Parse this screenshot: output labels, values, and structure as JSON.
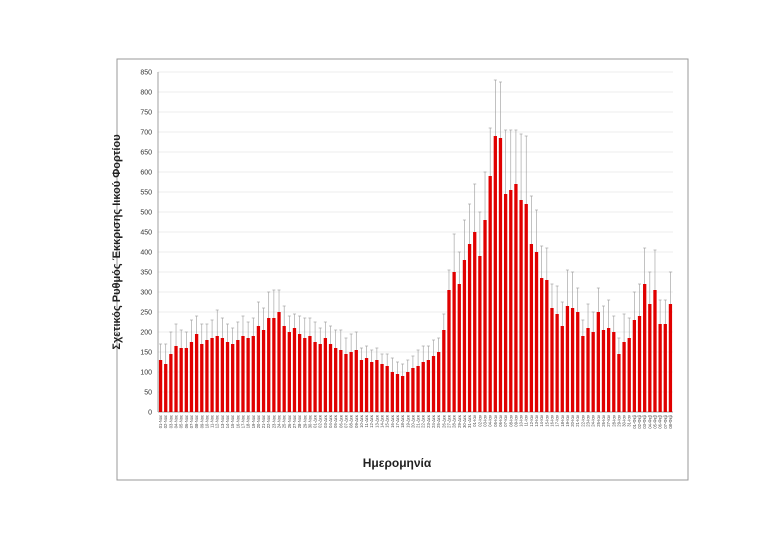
{
  "chart_data": {
    "type": "bar",
    "y_label": "Σχετικός Ρυθμός Έκκρισης Ιικού Φορτίου",
    "x_label": "Ημερομηνία",
    "color": "#e00000",
    "error_color": "#999999",
    "ylim": [
      0,
      850
    ],
    "yticks": [
      0,
      50,
      100,
      150,
      200,
      250,
      300,
      350,
      400,
      450,
      500,
      550,
      600,
      650,
      700,
      750,
      800,
      850
    ],
    "grid": true,
    "categories": [
      "01-Νοε",
      "02-Νοε",
      "03-Νοε",
      "04-Νοε",
      "05-Νοε",
      "06-Νοε",
      "07-Νοε",
      "08-Νοε",
      "09-Νοε",
      "10-Νοε",
      "11-Νοε",
      "12-Νοε",
      "13-Νοε",
      "14-Νοε",
      "15-Νοε",
      "16-Νοε",
      "17-Νοε",
      "18-Νοε",
      "19-Νοε",
      "20-Νοε",
      "21-Νοε",
      "22-Νοε",
      "23-Νοε",
      "24-Νοε",
      "25-Νοε",
      "26-Νοε",
      "27-Νοε",
      "28-Νοε",
      "29-Νοε",
      "30-Νοε",
      "01-Δεκ",
      "02-Δεκ",
      "03-Δεκ",
      "04-Δεκ",
      "05-Δεκ",
      "06-Δεκ",
      "07-Δεκ",
      "08-Δεκ",
      "09-Δεκ",
      "10-Δεκ",
      "11-Δεκ",
      "12-Δεκ",
      "13-Δεκ",
      "14-Δεκ",
      "15-Δεκ",
      "16-Δεκ",
      "17-Δεκ",
      "18-Δεκ",
      "19-Δεκ",
      "20-Δεκ",
      "21-Δεκ",
      "22-Δεκ",
      "23-Δεκ",
      "24-Δεκ",
      "25-Δεκ",
      "26-Δεκ",
      "27-Δεκ",
      "28-Δεκ",
      "29-Δεκ",
      "30-Δεκ",
      "31-Δεκ",
      "01-Ιαν",
      "02-Ιαν",
      "03-Ιαν",
      "04-Ιαν",
      "05-Ιαν",
      "06-Ιαν",
      "07-Ιαν",
      "08-Ιαν",
      "09-Ιαν",
      "10-Ιαν",
      "11-Ιαν",
      "12-Ιαν",
      "13-Ιαν",
      "14-Ιαν",
      "15-Ιαν",
      "16-Ιαν",
      "17-Ιαν",
      "18-Ιαν",
      "19-Ιαν",
      "20-Ιαν",
      "21-Ιαν",
      "22-Ιαν",
      "23-Ιαν",
      "24-Ιαν",
      "25-Ιαν",
      "26-Ιαν",
      "27-Ιαν",
      "28-Ιαν",
      "29-Ιαν",
      "30-Ιαν",
      "31-Ιαν",
      "01-Φεβ",
      "02-Φεβ",
      "03-Φεβ",
      "04-Φεβ",
      "05-Φεβ",
      "06-Φεβ",
      "07-Φεβ",
      "08-Φεβ"
    ],
    "values": [
      130,
      120,
      145,
      165,
      160,
      160,
      175,
      195,
      170,
      180,
      185,
      190,
      185,
      175,
      170,
      180,
      190,
      185,
      190,
      215,
      205,
      235,
      235,
      250,
      215,
      200,
      210,
      195,
      185,
      190,
      175,
      170,
      185,
      170,
      160,
      155,
      145,
      150,
      155,
      130,
      135,
      125,
      130,
      120,
      115,
      100,
      95,
      90,
      100,
      110,
      115,
      125,
      130,
      140,
      150,
      205,
      305,
      350,
      320,
      380,
      420,
      450,
      390,
      480,
      590,
      690,
      685,
      545,
      555,
      570,
      530,
      520,
      420,
      400,
      335,
      330,
      260,
      245,
      215,
      265,
      260,
      250,
      190,
      210,
      200,
      250,
      205,
      210,
      200,
      145,
      175,
      185,
      230,
      240,
      320,
      270,
      305,
      220,
      220,
      270
    ],
    "errors": [
      40,
      50,
      55,
      55,
      45,
      40,
      55,
      45,
      50,
      40,
      45,
      65,
      50,
      45,
      40,
      45,
      50,
      40,
      45,
      60,
      55,
      65,
      70,
      55,
      50,
      40,
      35,
      45,
      50,
      45,
      50,
      40,
      40,
      45,
      45,
      50,
      40,
      45,
      45,
      30,
      30,
      30,
      30,
      25,
      30,
      35,
      30,
      30,
      30,
      30,
      40,
      40,
      35,
      40,
      35,
      40,
      50,
      95,
      80,
      100,
      100,
      120,
      110,
      120,
      120,
      140,
      140,
      160,
      150,
      135,
      165,
      170,
      120,
      105,
      80,
      80,
      60,
      70,
      60,
      90,
      90,
      60,
      40,
      60,
      50,
      60,
      60,
      70,
      40,
      40,
      70,
      50,
      70,
      80,
      90,
      80,
      100,
      60,
      60,
      80
    ]
  }
}
